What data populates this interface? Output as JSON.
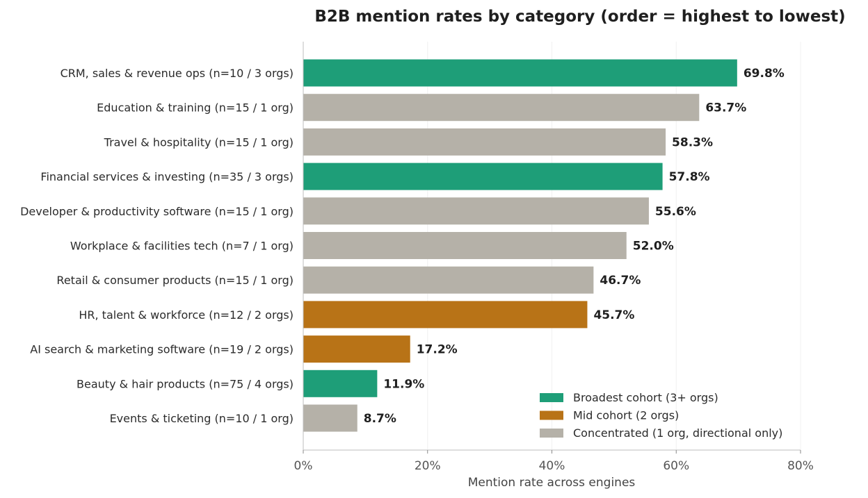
{
  "chart_data": {
    "type": "bar",
    "orientation": "horizontal",
    "title": "B2B mention rates by category (order = highest to lowest)",
    "xlabel": "Mention rate across engines",
    "ylabel": "",
    "xlim": [
      0,
      80
    ],
    "x_ticks": [
      "0%",
      "20%",
      "40%",
      "60%",
      "80%"
    ],
    "grid": "vertical",
    "legend_position": "bottom-right",
    "categories": [
      "CRM, sales & revenue ops (n=10 / 3 orgs)",
      "Education & training (n=15 / 1 org)",
      "Travel & hospitality (n=15 / 1 org)",
      "Financial services & investing (n=35 / 3 orgs)",
      "Developer & productivity software (n=15 / 1 org)",
      "Workplace & facilities tech (n=7 / 1 org)",
      "Retail & consumer products (n=15 / 1 org)",
      "HR, talent & workforce (n=12 / 2 orgs)",
      "AI search & marketing software (n=19 / 2 orgs)",
      "Beauty & hair products (n=75 / 4 orgs)",
      "Events & ticketing (n=10 / 1 org)"
    ],
    "values": [
      69.8,
      63.7,
      58.3,
      57.8,
      55.6,
      52.0,
      46.7,
      45.7,
      17.2,
      11.9,
      8.7
    ],
    "value_labels": [
      "69.8%",
      "63.7%",
      "58.3%",
      "57.8%",
      "55.6%",
      "52.0%",
      "46.7%",
      "45.7%",
      "17.2%",
      "11.9%",
      "8.7%"
    ],
    "cohort": [
      "broad",
      "conc",
      "conc",
      "broad",
      "conc",
      "conc",
      "conc",
      "mid",
      "mid",
      "broad",
      "conc"
    ],
    "legend": [
      {
        "key": "broad",
        "label": "Broadest cohort (3+ orgs)",
        "color": "#1e9e78"
      },
      {
        "key": "mid",
        "label": "Mid cohort (2 orgs)",
        "color": "#b87317"
      },
      {
        "key": "conc",
        "label": "Concentrated (1 org, directional only)",
        "color": "#b5b1a8"
      }
    ]
  }
}
